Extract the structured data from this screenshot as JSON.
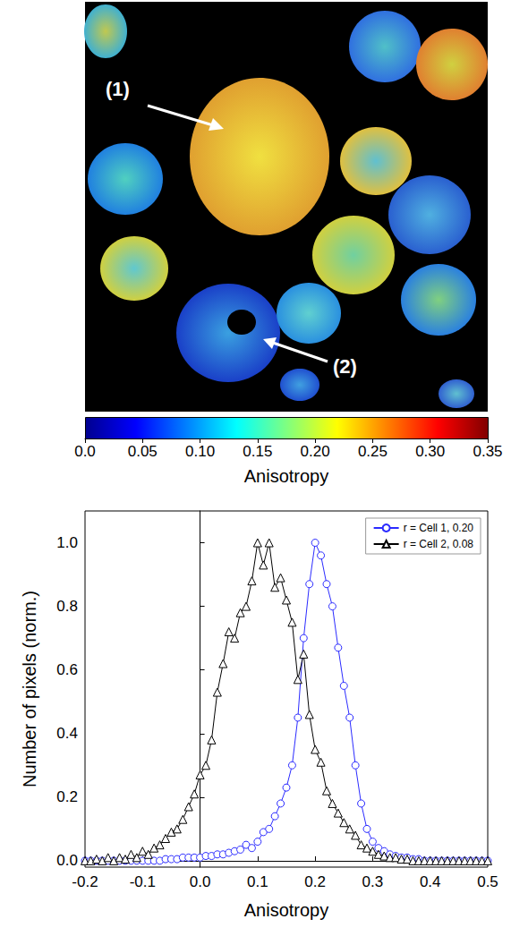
{
  "chart_data": [
    {
      "type": "image",
      "annotations": [
        "(1)",
        "(2)"
      ],
      "colorbar": {
        "label": "Anisotropy",
        "range": [
          0,
          0.35
        ],
        "ticks": [
          {
            "value": 0,
            "label": "0.0"
          },
          0.05,
          {
            "value": 0.1,
            "label": "0.10"
          },
          0.15,
          {
            "value": 0.2,
            "label": "0.20"
          },
          0.25,
          {
            "value": 0.3,
            "label": "0.30"
          },
          0.35
        ]
      }
    },
    {
      "type": "line",
      "x_label": "Anisotropy",
      "y_label": "Number of pixels (norm.)",
      "x": [
        -0.2,
        -0.19,
        -0.18,
        -0.17,
        -0.16,
        -0.15,
        -0.14,
        -0.13,
        -0.12,
        -0.11,
        -0.1,
        -0.09,
        -0.08,
        -0.07,
        -0.06,
        -0.05,
        -0.04,
        -0.03,
        -0.02,
        -0.01,
        0,
        0.01,
        0.02,
        0.03,
        0.04,
        0.05,
        0.06,
        0.07,
        0.08,
        0.09,
        0.1,
        0.11,
        0.12,
        0.13,
        0.14,
        0.15,
        0.16,
        0.17,
        0.18,
        0.19,
        0.2,
        0.21,
        0.22,
        0.23,
        0.24,
        0.25,
        0.26,
        0.27,
        0.28,
        0.29,
        0.3,
        0.31,
        0.32,
        0.33,
        0.34,
        0.35,
        0.36,
        0.37,
        0.38,
        0.39,
        0.4,
        0.41,
        0.42,
        0.43,
        0.44,
        0.45,
        0.46,
        0.47,
        0.48,
        0.49,
        0.5
      ],
      "series": [
        {
          "name": "r = Cell 1, 0.20",
          "color": "#2b2bff",
          "marker": "circle",
          "values": [
            0,
            0,
            0,
            0,
            0,
            0,
            0,
            0,
            0,
            0,
            0,
            0,
            0,
            0,
            0.005,
            0.005,
            0.005,
            0.01,
            0.01,
            0.01,
            0.01,
            0.015,
            0.015,
            0.02,
            0.02,
            0.025,
            0.03,
            0.035,
            0.05,
            0.04,
            0.06,
            0.09,
            0.1,
            0.14,
            0.18,
            0.23,
            0.3,
            0.45,
            0.7,
            0.87,
            1.0,
            0.96,
            0.87,
            0.8,
            0.67,
            0.55,
            0.45,
            0.3,
            0.18,
            0.1,
            0.06,
            0.04,
            0.03,
            0.02,
            0.015,
            0.01,
            0.01,
            0.005,
            0.005,
            0,
            0,
            0,
            0,
            0,
            0,
            0,
            0,
            0,
            0,
            0,
            0
          ]
        },
        {
          "name": "r = Cell 2, 0.08",
          "color": "#000000",
          "marker": "triangle",
          "values": [
            0,
            0,
            0.005,
            0,
            0.01,
            0,
            0.01,
            0.005,
            0.02,
            0.01,
            0.03,
            0.02,
            0.04,
            0.05,
            0.07,
            0.09,
            0.1,
            0.13,
            0.17,
            0.21,
            0.27,
            0.3,
            0.38,
            0.53,
            0.62,
            0.72,
            0.7,
            0.78,
            0.8,
            0.88,
            1.0,
            0.93,
            1.0,
            0.86,
            0.89,
            0.82,
            0.75,
            0.57,
            0.65,
            0.46,
            0.35,
            0.31,
            0.22,
            0.18,
            0.15,
            0.12,
            0.1,
            0.08,
            0.05,
            0.04,
            0.03,
            0.02,
            0.015,
            0.01,
            0.01,
            0.005,
            0.005,
            0,
            0,
            0,
            0,
            0,
            0,
            0,
            0,
            0,
            0,
            0,
            0,
            0,
            0
          ]
        }
      ],
      "xlim": [
        -0.2,
        0.5
      ],
      "xticks": [
        -0.2,
        -0.1,
        {
          "value": 0,
          "label": "0.0"
        },
        0.1,
        0.2,
        0.3,
        0.4,
        0.5
      ],
      "ylim": [
        -0.02,
        1.1
      ],
      "yticks": [
        {
          "value": 0,
          "label": "0.0"
        },
        0.2,
        0.4,
        0.6,
        0.8,
        {
          "value": 1,
          "label": "1.0"
        }
      ],
      "legend": "upper right",
      "grid": false
    }
  ]
}
